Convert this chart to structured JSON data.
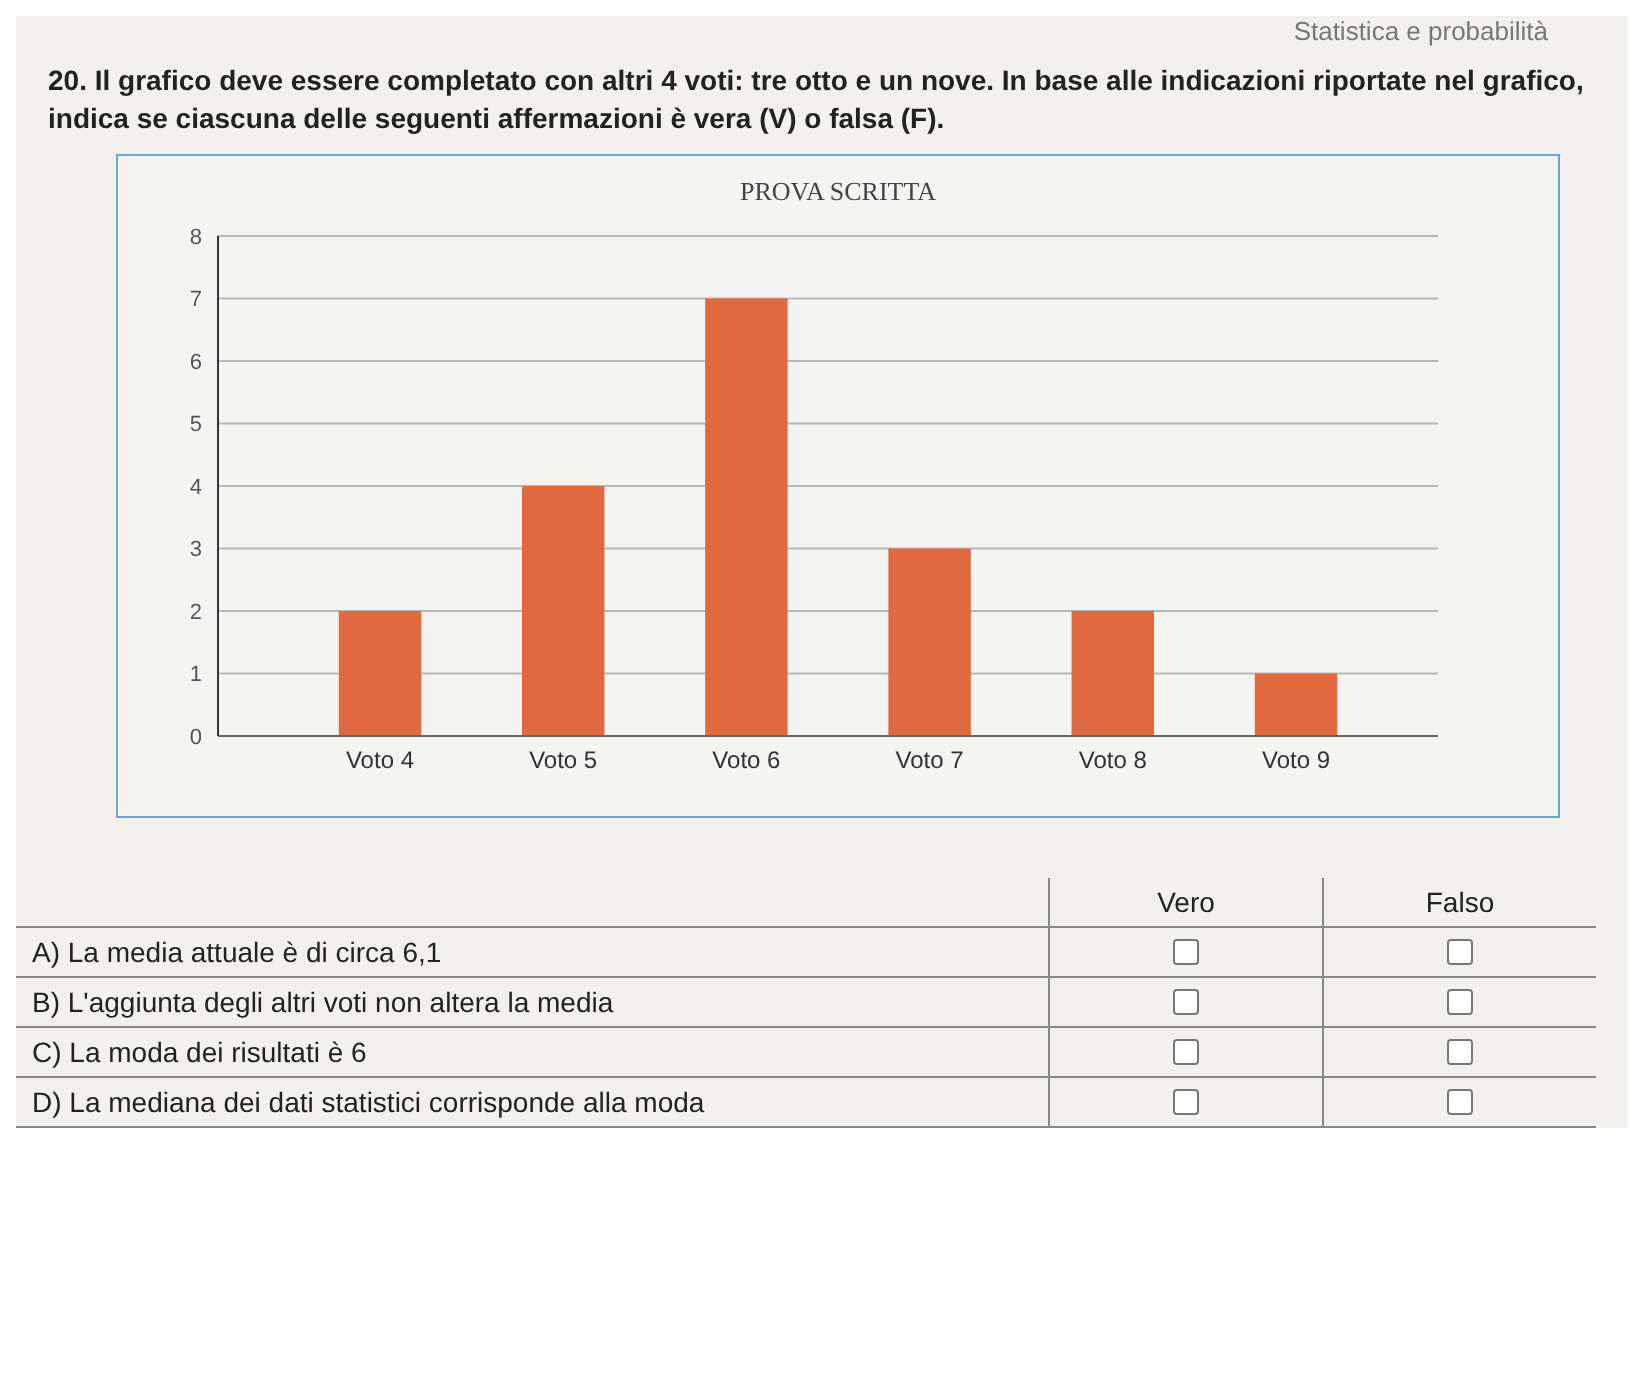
{
  "chart_data": {
    "type": "bar",
    "title": "PROVA SCRITTA",
    "categories": [
      "Voto 4",
      "Voto 5",
      "Voto 6",
      "Voto 7",
      "Voto 8",
      "Voto 9"
    ],
    "values": [
      2,
      4,
      7,
      3,
      2,
      1
    ],
    "color": "#e0693f",
    "ylim": [
      0,
      8
    ],
    "yticks": [
      0,
      1,
      2,
      3,
      4,
      5,
      6,
      7,
      8
    ],
    "grid": "y",
    "annotations": [
      "Statistica e probabilità",
      "20. Il grafico deve essere completato con altri 4 voti: tre otto e un nove. In base alle indicazioni riportate nel grafico, indica se ciascuna delle seguenti affermazioni è vera (V) o falsa (F).",
      "Vero",
      "Falso",
      "A) La media attuale è di circa 6,1",
      "B) L'aggiunta degli altri voti non altera la media",
      "C) La moda dei risultati è 6",
      "D) La mediana dei dati statistici corrisponde alla moda"
    ]
  }
}
